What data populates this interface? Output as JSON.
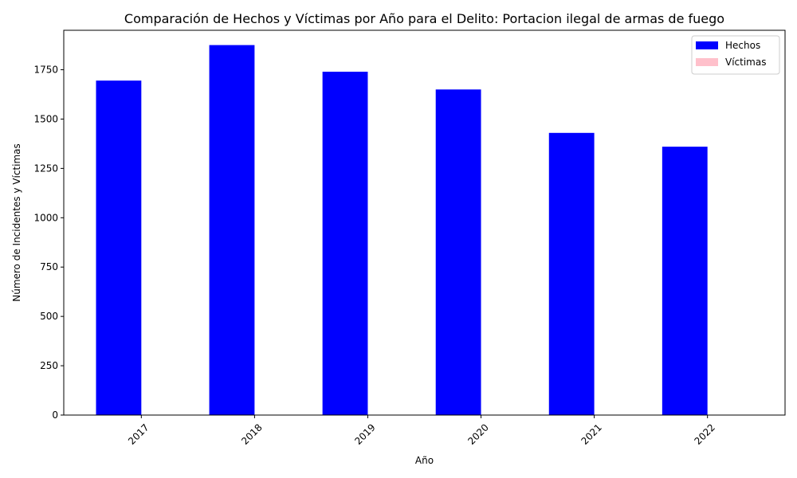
{
  "chart_data": {
    "type": "bar",
    "title": "Comparación de Hechos y Víctimas por Año para el Delito: Portacion ilegal de armas de fuego",
    "xlabel": "Año",
    "ylabel": "Número de Incidentes y Víctimas",
    "categories": [
      "2017",
      "2018",
      "2019",
      "2020",
      "2021",
      "2022"
    ],
    "series": [
      {
        "name": "Hechos",
        "color": "#0000ff",
        "values": [
          1695,
          1875,
          1740,
          1650,
          1430,
          1360
        ]
      },
      {
        "name": "Víctimas",
        "color": "#ffc0cb",
        "values": [
          0,
          0,
          0,
          0,
          0,
          0
        ]
      }
    ],
    "ylim": [
      0,
      1950
    ],
    "yticks": [
      0,
      250,
      500,
      750,
      1000,
      1250,
      1500,
      1750
    ],
    "grid": false,
    "legend_position": "top-right",
    "xtick_rotation": 45
  }
}
